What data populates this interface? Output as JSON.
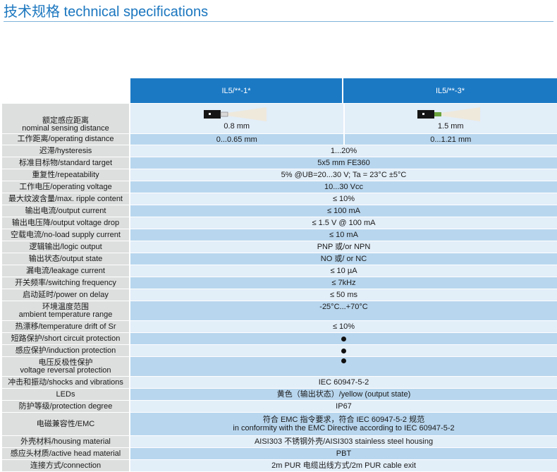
{
  "title": "技术规格 technical specifications",
  "models": [
    "IL5/**-1*",
    "IL5/**-3*"
  ],
  "colors": {
    "header_blue": "#1b79c4",
    "row_blue": "#b8d6ee",
    "row_light": "#e2eef8",
    "label_grey": "#dddede",
    "beam_green": "#6aa33c"
  },
  "nominal": {
    "label_cn": "额定感应距离",
    "label_en": "nominal sensing distance",
    "values": [
      "0.8 mm",
      "1.5 mm"
    ]
  },
  "operating": {
    "label": "工作距离/operating distance",
    "values": [
      "0...0.65 mm",
      "0...1.21 mm"
    ]
  },
  "rows": [
    {
      "label": "迟滞/hysteresis",
      "value": "1...20%"
    },
    {
      "label": "标准目标物/standard target",
      "value": "5x5 mm FE360"
    },
    {
      "label": "重复性/repeatability",
      "value": "5% @UB=20...30 V; Ta = 23°C ±5°C"
    },
    {
      "label": "工作电压/operating voltage",
      "value": "10...30 Vcc"
    },
    {
      "label": "最大纹波含量/max. ripple content",
      "value": "≤ 10%"
    },
    {
      "label": "输出电流/output current",
      "value": "≤ 100 mA"
    },
    {
      "label": "输出电压降/output voltage drop",
      "value": "≤ 1.5 V @ 100 mA"
    },
    {
      "label": "空载电流/no-load supply current",
      "value": "≤ 10 mA"
    },
    {
      "label": "逻辑输出/logic output",
      "value": "PNP 或/or NPN"
    },
    {
      "label": "输出状态/output state",
      "value": "NO 或/ or NC"
    },
    {
      "label": "漏电流/leakage current",
      "value": "≤ 10 µA"
    },
    {
      "label": "开关频率/switching frequency",
      "value": "≤ 7kHz"
    },
    {
      "label": "启动延时/power on delay",
      "value": "≤ 50 ms"
    }
  ],
  "ambient": {
    "label_cn": "环境温度范围",
    "label_en": "ambient temperature range",
    "value": "-25°C...+70°C"
  },
  "drift": {
    "label": "热漂移/temperature drift of Sr",
    "value": "≤ 10%"
  },
  "short": {
    "label": "短路保护/short circuit protection"
  },
  "induction": {
    "label": "感应保护/induction protection"
  },
  "reversal": {
    "label_cn": "电压反极性保护",
    "label_en": "voltage reversal protection"
  },
  "shocks": {
    "label": "冲击和振动/shocks and vibrations",
    "value": "IEC 60947-5-2"
  },
  "leds": {
    "label": "LEDs",
    "value": "黄色（输出状态）/yellow (output state)"
  },
  "protection": {
    "label": "防护等级/protection degree",
    "value": "IP67"
  },
  "emc": {
    "label": "电磁兼容性/EMC",
    "line1": "符合 EMC 指令要求，符合 IEC 60947-5-2 规范",
    "line2": "in conformity with the EMC Directive according to IEC 60947-5-2"
  },
  "housing": {
    "label": "外壳材料/housing material",
    "value": "AISI303 不锈钢外壳/AISI303 stainless steel housing"
  },
  "head": {
    "label": "感应头材质/active head material",
    "value": "PBT"
  },
  "connection": {
    "label": "连接方式/connection",
    "value": "2m PUR 电缆出线方式/2m PUR cable exit"
  }
}
